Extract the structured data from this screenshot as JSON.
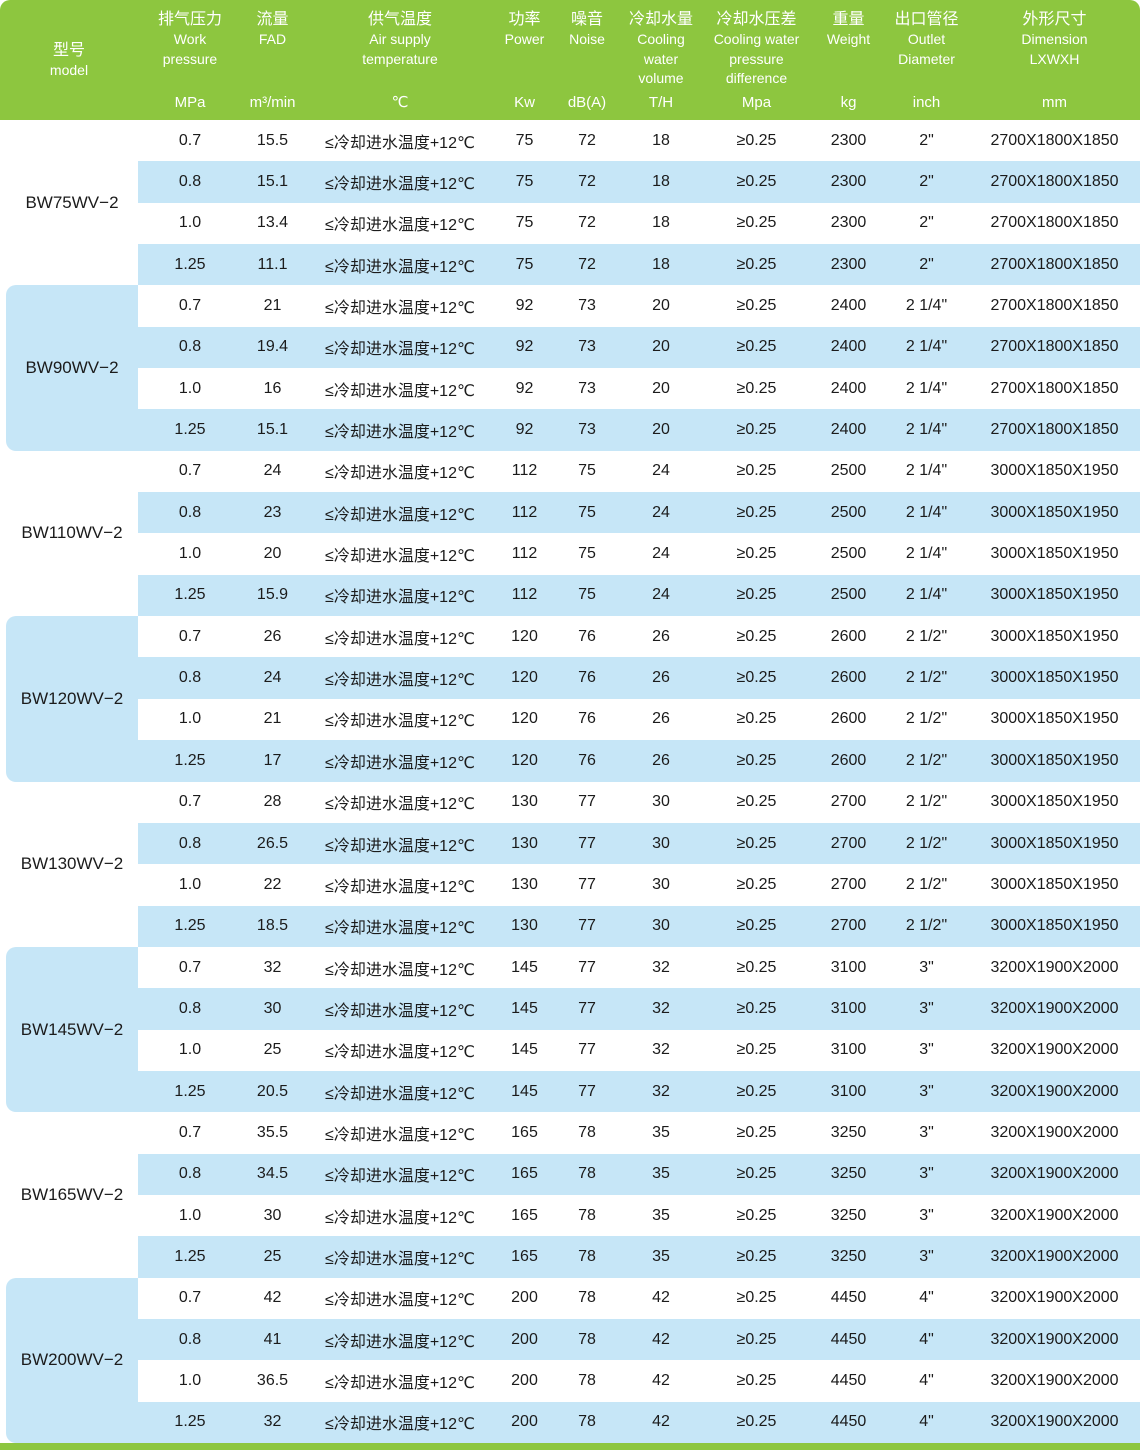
{
  "colors": {
    "header_green": "#8dc63f",
    "row_blue": "#c6e6f7",
    "row_white": "#ffffff",
    "text": "#1b1b1b"
  },
  "table": {
    "header": {
      "columns": [
        {
          "id": "model",
          "center": true,
          "title_lines": [
            "型号",
            "model"
          ],
          "unit": ""
        },
        {
          "id": "pressure",
          "center": false,
          "title_lines": [
            "排气压力",
            "Work",
            "pressure"
          ],
          "unit": "MPa"
        },
        {
          "id": "fad",
          "center": false,
          "title_lines": [
            "流量",
            "FAD"
          ],
          "unit": "m³/min"
        },
        {
          "id": "temp",
          "center": false,
          "title_lines": [
            "供气温度",
            "Air supply",
            "temperature"
          ],
          "unit": "℃"
        },
        {
          "id": "power",
          "center": false,
          "title_lines": [
            "功率",
            "Power"
          ],
          "unit": "Kw"
        },
        {
          "id": "noise",
          "center": false,
          "title_lines": [
            "噪音",
            "Noise"
          ],
          "unit": "dB(A)"
        },
        {
          "id": "cooling_water",
          "center": false,
          "title_lines": [
            "冷却水量",
            "Cooling",
            "water",
            "volume"
          ],
          "unit": "T/H"
        },
        {
          "id": "pressure_diff",
          "center": false,
          "title_lines": [
            "冷却水压差",
            "Cooling water",
            "pressure",
            "difference"
          ],
          "unit": "Mpa"
        },
        {
          "id": "weight",
          "center": false,
          "title_lines": [
            "重量",
            "Weight"
          ],
          "unit": "kg"
        },
        {
          "id": "outlet",
          "center": false,
          "title_lines": [
            "出口管径",
            "Outlet",
            "Diameter"
          ],
          "unit": "inch"
        },
        {
          "id": "dimension",
          "center": false,
          "title_lines": [
            "外形尺寸",
            "Dimension",
            "LXWXH"
          ],
          "unit": "mm"
        }
      ]
    },
    "shared": {
      "air_supply_temp": "≤冷却进水温度+12℃",
      "cooling_pressure_diff": "≥0.25"
    },
    "groups": [
      {
        "model": "BW75WV−2",
        "power": "75",
        "noise": "72",
        "cooling_water": "18",
        "weight": "2300",
        "outlet": "2\"",
        "dimension": "2700X1800X1850",
        "rows": [
          [
            "0.7",
            "15.5"
          ],
          [
            "0.8",
            "15.1"
          ],
          [
            "1.0",
            "13.4"
          ],
          [
            "1.25",
            "11.1"
          ]
        ]
      },
      {
        "model": "BW90WV−2",
        "power": "92",
        "noise": "73",
        "cooling_water": "20",
        "weight": "2400",
        "outlet": "2 1/4\"",
        "dimension": "2700X1800X1850",
        "rows": [
          [
            "0.7",
            "21"
          ],
          [
            "0.8",
            "19.4"
          ],
          [
            "1.0",
            "16"
          ],
          [
            "1.25",
            "15.1"
          ]
        ]
      },
      {
        "model": "BW110WV−2",
        "power": "112",
        "noise": "75",
        "cooling_water": "24",
        "weight": "2500",
        "outlet": "2 1/4\"",
        "dimension": "3000X1850X1950",
        "rows": [
          [
            "0.7",
            "24"
          ],
          [
            "0.8",
            "23"
          ],
          [
            "1.0",
            "20"
          ],
          [
            "1.25",
            "15.9"
          ]
        ]
      },
      {
        "model": "BW120WV−2",
        "power": "120",
        "noise": "76",
        "cooling_water": "26",
        "weight": "2600",
        "outlet": "2 1/2\"",
        "dimension": "3000X1850X1950",
        "rows": [
          [
            "0.7",
            "26"
          ],
          [
            "0.8",
            "24"
          ],
          [
            "1.0",
            "21"
          ],
          [
            "1.25",
            "17"
          ]
        ]
      },
      {
        "model": "BW130WV−2",
        "power": "130",
        "noise": "77",
        "cooling_water": "30",
        "weight": "2700",
        "outlet": "2 1/2\"",
        "dimension": "3000X1850X1950",
        "rows": [
          [
            "0.7",
            "28"
          ],
          [
            "0.8",
            "26.5"
          ],
          [
            "1.0",
            "22"
          ],
          [
            "1.25",
            "18.5"
          ]
        ]
      },
      {
        "model": "BW145WV−2",
        "power": "145",
        "noise": "77",
        "cooling_water": "32",
        "weight": "3100",
        "outlet": "3\"",
        "dimension": "3200X1900X2000",
        "rows": [
          [
            "0.7",
            "32"
          ],
          [
            "0.8",
            "30"
          ],
          [
            "1.0",
            "25"
          ],
          [
            "1.25",
            "20.5"
          ]
        ]
      },
      {
        "model": "BW165WV−2",
        "power": "165",
        "noise": "78",
        "cooling_water": "35",
        "weight": "3250",
        "outlet": "3\"",
        "dimension": "3200X1900X2000",
        "rows": [
          [
            "0.7",
            "35.5"
          ],
          [
            "0.8",
            "34.5"
          ],
          [
            "1.0",
            "30"
          ],
          [
            "1.25",
            "25"
          ]
        ]
      },
      {
        "model": "BW200WV−2",
        "power": "200",
        "noise": "78",
        "cooling_water": "42",
        "weight": "4450",
        "outlet": "4\"",
        "dimension": "3200X1900X2000",
        "rows": [
          [
            "0.7",
            "42"
          ],
          [
            "0.8",
            "41"
          ],
          [
            "1.0",
            "36.5"
          ],
          [
            "1.25",
            "32"
          ]
        ]
      }
    ]
  }
}
